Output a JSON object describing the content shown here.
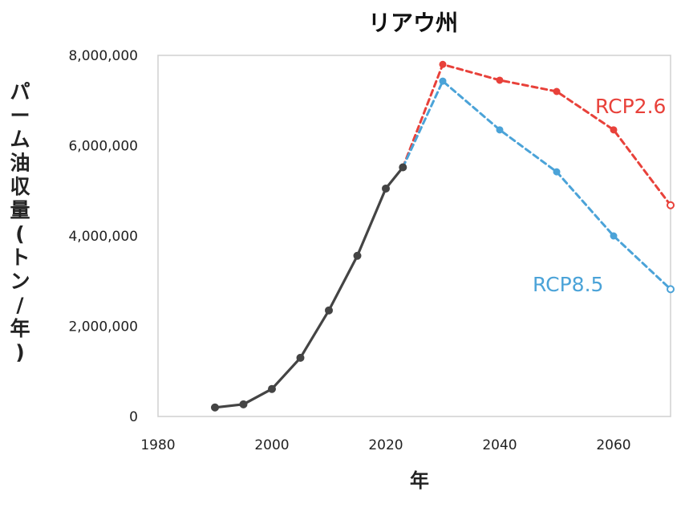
{
  "chart_data": {
    "type": "line",
    "title": "リアウ州",
    "xlabel": "年",
    "ylabel": "パーム油収量(トン/年)",
    "xlim": [
      1980,
      2070
    ],
    "ylim": [
      0,
      8000000
    ],
    "x_ticks": [
      1980,
      2000,
      2020,
      2040,
      2060
    ],
    "y_ticks": [
      0,
      2000000,
      4000000,
      6000000,
      8000000
    ],
    "x_tick_labels": [
      "1980",
      "2000",
      "2020",
      "2040",
      "2060"
    ],
    "y_tick_labels": [
      "0",
      "2,000,000",
      "4,000,000",
      "6,000,000",
      "8,000,000"
    ],
    "grid": false,
    "series": [
      {
        "color": "#444444",
        "dash": "solid",
        "points": [
          [
            1990,
            200000
          ],
          [
            1995,
            270000
          ],
          [
            2000,
            610000
          ],
          [
            2005,
            1300000
          ],
          [
            2010,
            2350000
          ],
          [
            2015,
            3560000
          ],
          [
            2020,
            5050000
          ],
          [
            2023,
            5520000
          ]
        ]
      },
      {
        "name": "RCP2.6",
        "color": "#e8413a",
        "dash": "dashed",
        "points": [
          [
            2023,
            5520000
          ],
          [
            2030,
            7800000
          ],
          [
            2040,
            7450000
          ],
          [
            2050,
            7200000
          ],
          [
            2060,
            6350000
          ],
          [
            2070,
            4680000
          ]
        ]
      },
      {
        "name": "RCP8.5",
        "color": "#4ba3d8",
        "dash": "dashed",
        "points": [
          [
            2023,
            5520000
          ],
          [
            2030,
            7430000
          ],
          [
            2040,
            6350000
          ],
          [
            2050,
            5420000
          ],
          [
            2060,
            4000000
          ],
          [
            2070,
            2820000
          ]
        ]
      }
    ]
  }
}
